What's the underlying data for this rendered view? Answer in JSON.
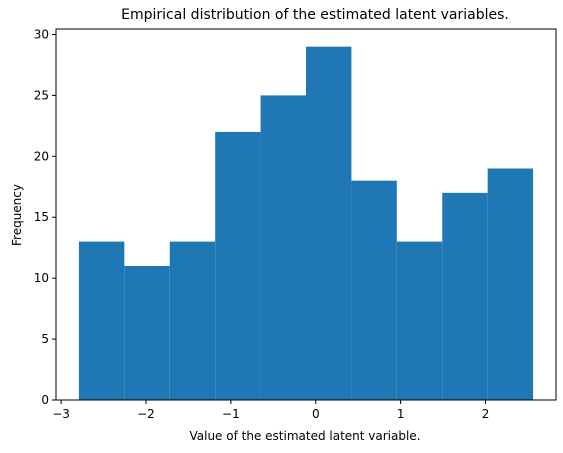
{
  "chart_data": {
    "type": "bar",
    "subtype": "histogram",
    "title": "Empirical distribution of the estimated latent variables.",
    "xlabel": "Value of the estimated latent variable.",
    "ylabel": "Frequency",
    "bin_edges": [
      -2.79,
      -2.255,
      -1.72,
      -1.185,
      -0.65,
      -0.115,
      0.42,
      0.955,
      1.49,
      2.025,
      2.56
    ],
    "values": [
      13,
      11,
      13,
      22,
      25,
      29,
      18,
      13,
      17,
      19
    ],
    "xlim": [
      -3.06,
      2.83
    ],
    "ylim": [
      0,
      30.45
    ],
    "xticks": [
      -3,
      -2,
      -1,
      0,
      1,
      2
    ],
    "xtick_labels": [
      "−3",
      "−2",
      "−1",
      "0",
      "1",
      "2"
    ],
    "yticks": [
      0,
      5,
      10,
      15,
      20,
      25,
      30
    ],
    "ytick_labels": [
      "0",
      "5",
      "10",
      "15",
      "20",
      "25",
      "30"
    ],
    "bar_color": "#1f77b4",
    "grid": false,
    "legend": "none"
  }
}
